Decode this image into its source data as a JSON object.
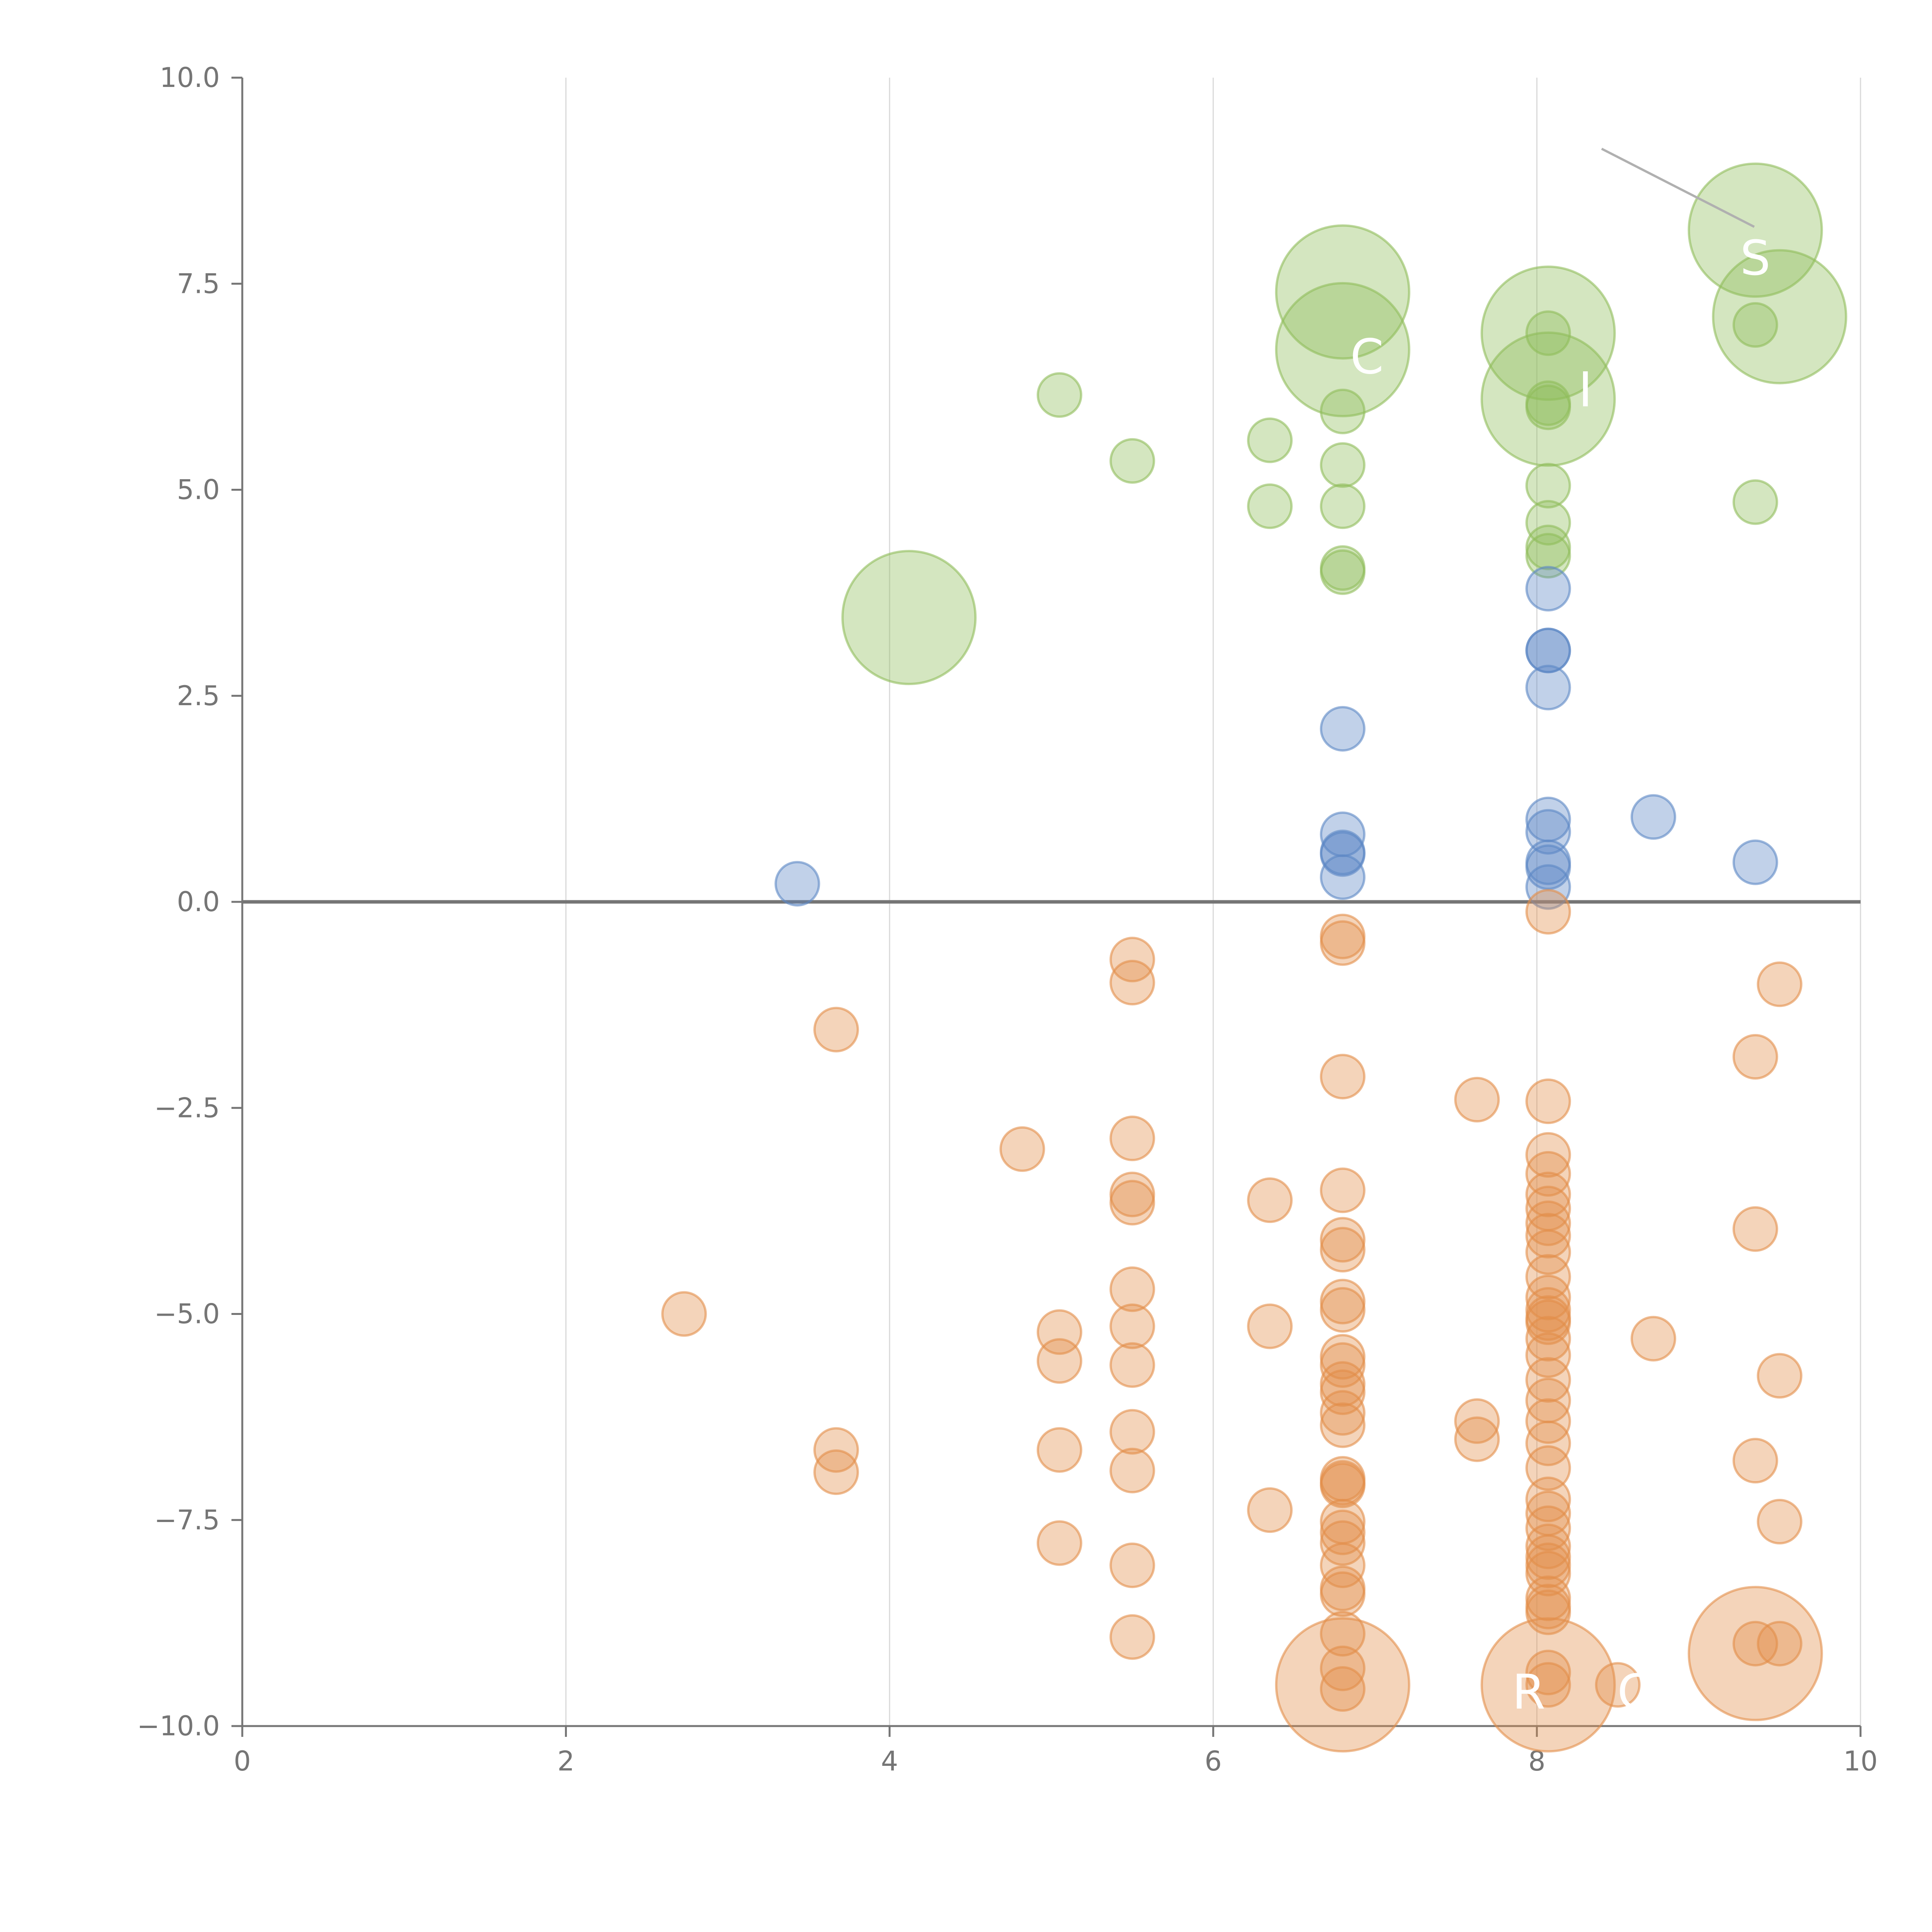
{
  "chart_data": {
    "type": "scatter",
    "title": "",
    "xlabel": "",
    "ylabel": "",
    "xlim": [
      0,
      10
    ],
    "ylim": [
      -10,
      10
    ],
    "x_ticks": [
      "0",
      "2",
      "4",
      "6",
      "8",
      "10"
    ],
    "y_ticks": [
      "10.0",
      "7.5",
      "5.0",
      "2.5",
      "0.0",
      "−2.5",
      "−5.0",
      "−7.5",
      "−10.0"
    ],
    "grid": "vertical",
    "zero_line": 0,
    "colors": {
      "green": "#8fbc5a",
      "blue": "#5b87c5",
      "orange": "#e38d4a",
      "axis": "#757575",
      "grid": "#d9d9d9"
    },
    "annotations": [
      {
        "text": "S",
        "x": 9.35,
        "y": 7.8
      },
      {
        "text": "C",
        "x": 6.95,
        "y": 6.6
      },
      {
        "text": "I",
        "x": 8.3,
        "y": 6.2
      },
      {
        "text": "R",
        "x": 7.95,
        "y": -9.6
      },
      {
        "text": "C",
        "x": 8.6,
        "y": -9.6
      }
    ],
    "series": [
      {
        "color": "#8fbc5a",
        "points": [
          [
            9.35,
            8.15,
            2
          ],
          [
            9.5,
            7.1,
            2
          ],
          [
            9.35,
            7.0,
            1
          ],
          [
            6.8,
            7.4,
            2
          ],
          [
            6.8,
            6.7,
            2
          ],
          [
            8.07,
            6.9,
            2
          ],
          [
            8.07,
            6.9,
            1
          ],
          [
            8.07,
            6.1,
            2
          ],
          [
            8.07,
            6.05,
            1
          ],
          [
            8.07,
            6.0,
            1
          ],
          [
            5.05,
            6.15,
            1
          ],
          [
            6.35,
            5.6,
            1
          ],
          [
            5.5,
            5.35,
            1
          ],
          [
            6.8,
            5.95,
            1
          ],
          [
            6.8,
            5.3,
            1
          ],
          [
            6.8,
            4.8,
            1
          ],
          [
            6.35,
            4.8,
            1
          ],
          [
            6.8,
            4.05,
            1
          ],
          [
            6.8,
            4.0,
            1
          ],
          [
            8.07,
            5.05,
            1
          ],
          [
            8.07,
            4.6,
            1
          ],
          [
            8.07,
            4.3,
            1
          ],
          [
            8.07,
            4.2,
            1
          ],
          [
            9.35,
            4.85,
            1
          ],
          [
            4.12,
            3.45,
            2
          ]
        ]
      },
      {
        "color": "#5b87c5",
        "points": [
          [
            8.07,
            3.8,
            1
          ],
          [
            8.07,
            3.05,
            1
          ],
          [
            8.07,
            3.05,
            1
          ],
          [
            8.07,
            2.6,
            1
          ],
          [
            6.8,
            2.1,
            1
          ],
          [
            8.72,
            1.03,
            1
          ],
          [
            8.07,
            1.0,
            1
          ],
          [
            8.07,
            0.85,
            1
          ],
          [
            6.8,
            0.82,
            1
          ],
          [
            6.8,
            0.6,
            1
          ],
          [
            6.8,
            0.58,
            1
          ],
          [
            9.35,
            0.48,
            1
          ],
          [
            8.07,
            0.48,
            1
          ],
          [
            8.07,
            0.42,
            1
          ],
          [
            6.8,
            0.3,
            1
          ],
          [
            8.07,
            0.18,
            1
          ],
          [
            3.43,
            0.22,
            1
          ]
        ]
      },
      {
        "color": "#e38d4a",
        "points": [
          [
            8.07,
            -0.12,
            1
          ],
          [
            6.8,
            -0.42,
            1
          ],
          [
            6.8,
            -0.5,
            1
          ],
          [
            5.5,
            -0.7,
            1
          ],
          [
            5.5,
            -0.98,
            1
          ],
          [
            9.5,
            -1.0,
            1
          ],
          [
            3.67,
            -1.55,
            1
          ],
          [
            9.35,
            -1.88,
            1
          ],
          [
            6.8,
            -2.12,
            1
          ],
          [
            7.63,
            -2.4,
            1
          ],
          [
            8.07,
            -2.42,
            1
          ],
          [
            5.5,
            -2.87,
            1
          ],
          [
            4.82,
            -3.0,
            1
          ],
          [
            8.07,
            -3.07,
            1
          ],
          [
            8.07,
            -3.3,
            1
          ],
          [
            6.8,
            -3.5,
            1
          ],
          [
            5.5,
            -3.55,
            1
          ],
          [
            8.07,
            -3.55,
            1
          ],
          [
            5.5,
            -3.65,
            1
          ],
          [
            6.35,
            -3.62,
            1
          ],
          [
            8.07,
            -3.72,
            1
          ],
          [
            8.07,
            -3.9,
            1
          ],
          [
            9.35,
            -3.97,
            1
          ],
          [
            8.07,
            -4.05,
            1
          ],
          [
            6.8,
            -4.1,
            1
          ],
          [
            6.8,
            -4.22,
            1
          ],
          [
            8.07,
            -4.25,
            1
          ],
          [
            8.07,
            -4.55,
            1
          ],
          [
            5.5,
            -4.7,
            1
          ],
          [
            6.8,
            -4.85,
            1
          ],
          [
            8.07,
            -4.8,
            1
          ],
          [
            6.8,
            -4.95,
            1
          ],
          [
            8.07,
            -4.95,
            1
          ],
          [
            2.73,
            -5.0,
            1
          ],
          [
            8.07,
            -5.05,
            1
          ],
          [
            8.07,
            -5.1,
            1
          ],
          [
            6.35,
            -5.15,
            1
          ],
          [
            5.5,
            -5.15,
            1
          ],
          [
            5.05,
            -5.22,
            1
          ],
          [
            8.07,
            -5.3,
            1
          ],
          [
            8.72,
            -5.3,
            1
          ],
          [
            8.07,
            -5.5,
            1
          ],
          [
            6.8,
            -5.52,
            1
          ],
          [
            5.05,
            -5.57,
            1
          ],
          [
            6.8,
            -5.62,
            1
          ],
          [
            5.5,
            -5.62,
            1
          ],
          [
            9.5,
            -5.75,
            1
          ],
          [
            8.07,
            -5.8,
            1
          ],
          [
            6.8,
            -5.85,
            1
          ],
          [
            6.8,
            -5.95,
            1
          ],
          [
            8.07,
            -6.05,
            1
          ],
          [
            6.8,
            -6.2,
            1
          ],
          [
            7.63,
            -6.3,
            1
          ],
          [
            6.8,
            -6.35,
            1
          ],
          [
            8.07,
            -6.3,
            1
          ],
          [
            5.5,
            -6.43,
            1
          ],
          [
            7.63,
            -6.52,
            1
          ],
          [
            8.07,
            -6.57,
            1
          ],
          [
            3.67,
            -6.65,
            1
          ],
          [
            5.05,
            -6.65,
            1
          ],
          [
            9.35,
            -6.78,
            1
          ],
          [
            3.67,
            -6.92,
            1
          ],
          [
            5.5,
            -6.9,
            1
          ],
          [
            8.07,
            -6.87,
            1
          ],
          [
            6.8,
            -7.0,
            1
          ],
          [
            6.8,
            -7.05,
            1
          ],
          [
            6.8,
            -7.08,
            1
          ],
          [
            8.07,
            -7.25,
            1
          ],
          [
            6.35,
            -7.38,
            1
          ],
          [
            8.07,
            -7.42,
            1
          ],
          [
            6.8,
            -7.52,
            1
          ],
          [
            9.5,
            -7.52,
            1
          ],
          [
            8.07,
            -7.6,
            1
          ],
          [
            6.8,
            -7.65,
            1
          ],
          [
            6.8,
            -7.78,
            1
          ],
          [
            5.05,
            -7.78,
            1
          ],
          [
            8.07,
            -7.82,
            1
          ],
          [
            8.07,
            -7.95,
            1
          ],
          [
            5.5,
            -8.05,
            1
          ],
          [
            6.8,
            -8.05,
            1
          ],
          [
            8.07,
            -8.05,
            1
          ],
          [
            8.07,
            -8.15,
            1
          ],
          [
            6.8,
            -8.33,
            1
          ],
          [
            6.8,
            -8.4,
            1
          ],
          [
            8.07,
            -8.45,
            1
          ],
          [
            8.07,
            -8.55,
            1
          ],
          [
            8.07,
            -8.62,
            1
          ],
          [
            5.5,
            -8.92,
            1
          ],
          [
            6.8,
            -8.88,
            1
          ],
          [
            9.35,
            -9.0,
            1
          ],
          [
            9.5,
            -9.0,
            1
          ],
          [
            9.35,
            -9.12,
            2
          ],
          [
            6.8,
            -9.3,
            1
          ],
          [
            8.07,
            -9.35,
            1
          ],
          [
            6.8,
            -9.5,
            2
          ],
          [
            6.8,
            -9.55,
            1
          ],
          [
            8.07,
            -9.5,
            2
          ],
          [
            8.07,
            -9.5,
            1
          ],
          [
            8.5,
            -9.5,
            1
          ]
        ]
      }
    ]
  }
}
